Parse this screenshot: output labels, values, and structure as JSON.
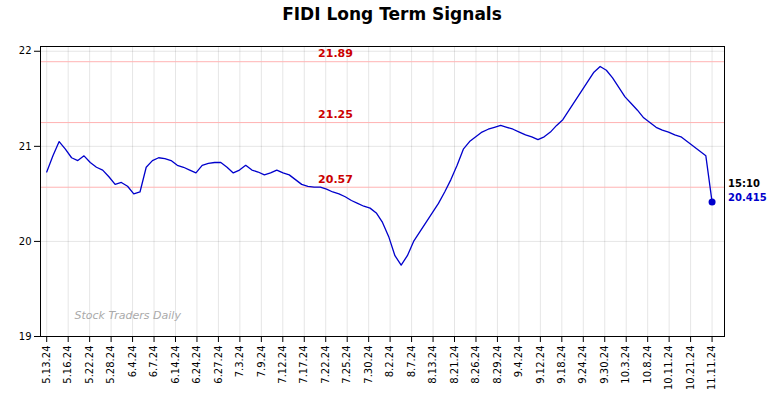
{
  "chart_data": {
    "type": "line",
    "title": "FIDI Long Term Signals",
    "color": "#0000cc",
    "x": [
      0,
      1,
      2,
      3,
      4,
      5,
      6,
      7,
      8,
      9,
      10,
      11,
      12,
      13,
      14,
      15,
      16,
      17,
      18,
      19,
      20,
      21,
      22,
      23,
      24,
      25,
      26,
      27,
      28,
      29,
      30,
      31,
      32,
      33,
      34,
      35,
      36,
      37,
      38,
      39,
      40,
      41,
      42,
      43,
      44,
      45,
      46,
      47,
      48,
      49,
      50,
      51,
      52,
      53,
      54,
      55,
      56,
      57,
      58,
      59,
      60,
      61,
      62,
      63,
      64,
      65,
      66,
      67,
      68,
      69,
      70,
      71,
      72,
      73,
      74,
      75,
      76,
      77,
      78,
      79,
      80,
      81,
      82,
      83,
      84,
      85,
      86,
      87,
      88,
      89,
      90,
      91,
      92,
      93,
      94,
      95,
      96,
      97,
      98,
      99,
      100,
      101,
      102,
      103,
      104,
      105,
      106,
      107
    ],
    "values": [
      20.73,
      20.9,
      21.05,
      20.97,
      20.88,
      20.85,
      20.9,
      20.83,
      20.78,
      20.75,
      20.68,
      20.6,
      20.62,
      20.58,
      20.5,
      20.52,
      20.78,
      20.85,
      20.88,
      20.87,
      20.85,
      20.8,
      20.78,
      20.75,
      20.72,
      20.8,
      20.82,
      20.83,
      20.83,
      20.78,
      20.72,
      20.75,
      20.8,
      20.75,
      20.73,
      20.7,
      20.72,
      20.75,
      20.72,
      20.7,
      20.65,
      20.6,
      20.58,
      20.57,
      20.57,
      20.55,
      20.52,
      20.5,
      20.47,
      20.43,
      20.4,
      20.37,
      20.35,
      20.3,
      20.2,
      20.05,
      19.85,
      19.75,
      19.85,
      20.0,
      20.1,
      20.2,
      20.3,
      20.4,
      20.52,
      20.65,
      20.8,
      20.97,
      21.05,
      21.1,
      21.15,
      21.18,
      21.2,
      21.22,
      21.2,
      21.18,
      21.15,
      21.12,
      21.1,
      21.07,
      21.1,
      21.15,
      21.22,
      21.28,
      21.38,
      21.48,
      21.58,
      21.68,
      21.78,
      21.84,
      21.8,
      21.72,
      21.62,
      21.52,
      21.45,
      21.38,
      21.3,
      21.25,
      21.2,
      21.17,
      21.15,
      21.12,
      21.1,
      21.05,
      21.0,
      20.95,
      20.9,
      20.415
    ],
    "xlim": [
      -1,
      109
    ],
    "xticks": [
      {
        "value": 0,
        "label": "5.13.24"
      },
      {
        "value": 3.4516129,
        "label": "5.16.24"
      },
      {
        "value": 6.90322581,
        "label": "5.22.24"
      },
      {
        "value": 10.35483871,
        "label": "5.28.24"
      },
      {
        "value": 13.80645161,
        "label": "6.4.24"
      },
      {
        "value": 17.25806452,
        "label": "6.7.24"
      },
      {
        "value": 20.70967742,
        "label": "6.14.24"
      },
      {
        "value": 24.16129032,
        "label": "6.24.24"
      },
      {
        "value": 27.61290323,
        "label": "6.27.24"
      },
      {
        "value": 31.06451613,
        "label": "7.3.24"
      },
      {
        "value": 34.51612903,
        "label": "7.9.24"
      },
      {
        "value": 37.96774194,
        "label": "7.12.24"
      },
      {
        "value": 41.41935484,
        "label": "7.17.24"
      },
      {
        "value": 44.87096774,
        "label": "7.22.24"
      },
      {
        "value": 48.32258065,
        "label": "7.25.24"
      },
      {
        "value": 51.77419355,
        "label": "7.30.24"
      },
      {
        "value": 55.22580645,
        "label": "8.2.24"
      },
      {
        "value": 58.67741935,
        "label": "8.7.24"
      },
      {
        "value": 62.12903226,
        "label": "8.13.24"
      },
      {
        "value": 65.58064516,
        "label": "8.21.24"
      },
      {
        "value": 69.03225806,
        "label": "8.26.24"
      },
      {
        "value": 72.48387097,
        "label": "8.29.24"
      },
      {
        "value": 75.93548387,
        "label": "9.4.24"
      },
      {
        "value": 79.38709677,
        "label": "9.12.24"
      },
      {
        "value": 82.83870968,
        "label": "9.18.24"
      },
      {
        "value": 86.29032258,
        "label": "9.24.24"
      },
      {
        "value": 89.74193548,
        "label": "9.30.24"
      },
      {
        "value": 93.19354839,
        "label": "10.3.24"
      },
      {
        "value": 96.64516129,
        "label": "10.8.24"
      },
      {
        "value": 100.09677419,
        "label": "10.11.24"
      },
      {
        "value": 103.5483871,
        "label": "10.21.24"
      },
      {
        "value": 107,
        "label": "11.11.24"
      }
    ],
    "ylim": [
      19.0,
      22.05
    ],
    "yticks": [
      19,
      20,
      21,
      22
    ],
    "grid": true,
    "hlines": [
      {
        "value": 21.89,
        "label": "21.89",
        "color": "#ffb3b3",
        "label_color": "#cc0000"
      },
      {
        "value": 21.25,
        "label": "21.25",
        "color": "#ffb3b3",
        "label_color": "#cc0000"
      },
      {
        "value": 20.57,
        "label": "20.57",
        "color": "#ffb3b3",
        "label_color": "#cc0000"
      }
    ],
    "annotations": [
      {
        "text": "15:10",
        "color": "black"
      },
      {
        "text": "20.415",
        "color": "#0000cc"
      }
    ],
    "watermark": {
      "text": "Stock Traders Daily",
      "color": "#aaaaaa"
    }
  }
}
